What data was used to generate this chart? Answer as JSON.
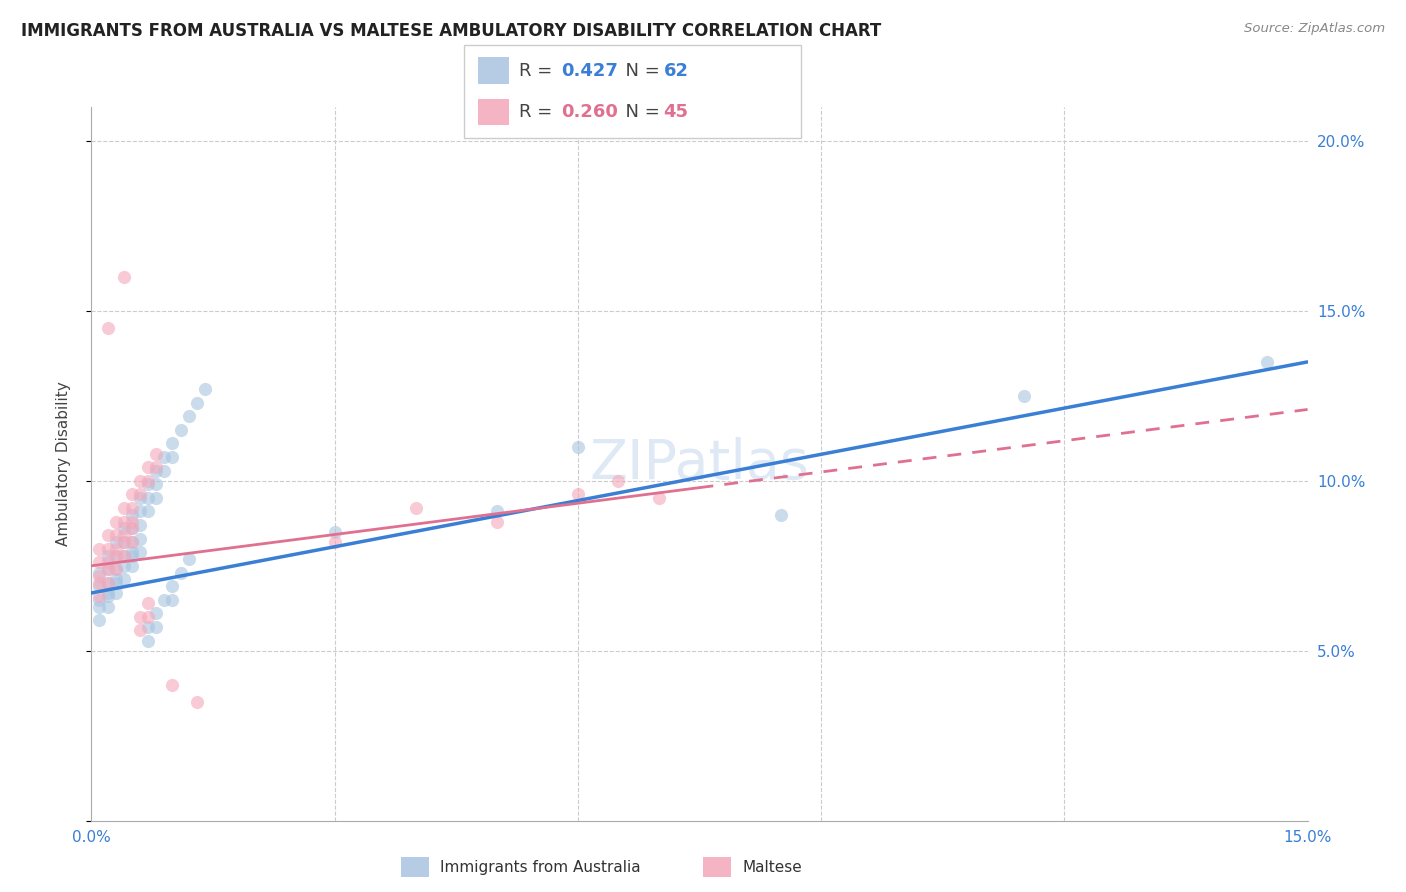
{
  "title": "IMMIGRANTS FROM AUSTRALIA VS MALTESE AMBULATORY DISABILITY CORRELATION CHART",
  "source": "Source: ZipAtlas.com",
  "ylabel_label": "Ambulatory Disability",
  "x_min": 0.0,
  "x_max": 0.15,
  "y_min": 0.0,
  "y_max": 0.21,
  "blue_color": "#a8c4e0",
  "pink_color": "#f4a7b9",
  "line_blue": "#3a7fd5",
  "line_pink": "#e07090",
  "background_color": "#ffffff",
  "scatter_alpha": 0.6,
  "scatter_size": 90,
  "watermark": "ZIPatlas",
  "blue_r": "0.427",
  "blue_n": "62",
  "pink_r": "0.260",
  "pink_n": "45",
  "blue_x": [
    0.001,
    0.001,
    0.001,
    0.002,
    0.002,
    0.002,
    0.002,
    0.003,
    0.003,
    0.003,
    0.003,
    0.004,
    0.004,
    0.004,
    0.005,
    0.005,
    0.005,
    0.005,
    0.006,
    0.006,
    0.006,
    0.007,
    0.007,
    0.007,
    0.008,
    0.008,
    0.008,
    0.009,
    0.009,
    0.01,
    0.01,
    0.011,
    0.012,
    0.013,
    0.014,
    0.001,
    0.001,
    0.002,
    0.002,
    0.003,
    0.003,
    0.004,
    0.004,
    0.005,
    0.005,
    0.006,
    0.006,
    0.007,
    0.007,
    0.008,
    0.008,
    0.009,
    0.01,
    0.01,
    0.011,
    0.012,
    0.03,
    0.05,
    0.06,
    0.085,
    0.115,
    0.145
  ],
  "blue_y": [
    0.073,
    0.069,
    0.065,
    0.078,
    0.074,
    0.07,
    0.066,
    0.082,
    0.078,
    0.074,
    0.07,
    0.086,
    0.082,
    0.078,
    0.09,
    0.086,
    0.082,
    0.078,
    0.095,
    0.091,
    0.087,
    0.099,
    0.095,
    0.091,
    0.103,
    0.099,
    0.095,
    0.107,
    0.103,
    0.111,
    0.107,
    0.115,
    0.119,
    0.123,
    0.127,
    0.063,
    0.059,
    0.067,
    0.063,
    0.071,
    0.067,
    0.075,
    0.071,
    0.079,
    0.075,
    0.083,
    0.079,
    0.057,
    0.053,
    0.061,
    0.057,
    0.065,
    0.069,
    0.065,
    0.073,
    0.077,
    0.085,
    0.091,
    0.11,
    0.09,
    0.125,
    0.135
  ],
  "pink_x": [
    0.001,
    0.001,
    0.001,
    0.002,
    0.002,
    0.002,
    0.003,
    0.003,
    0.003,
    0.004,
    0.004,
    0.004,
    0.005,
    0.005,
    0.005,
    0.006,
    0.006,
    0.007,
    0.007,
    0.008,
    0.008,
    0.001,
    0.001,
    0.002,
    0.002,
    0.003,
    0.003,
    0.004,
    0.004,
    0.005,
    0.005,
    0.006,
    0.006,
    0.007,
    0.007,
    0.03,
    0.04,
    0.05,
    0.06,
    0.065,
    0.07,
    0.002,
    0.004,
    0.01,
    0.013
  ],
  "pink_y": [
    0.08,
    0.076,
    0.072,
    0.084,
    0.08,
    0.076,
    0.088,
    0.084,
    0.08,
    0.092,
    0.088,
    0.084,
    0.096,
    0.092,
    0.088,
    0.1,
    0.096,
    0.104,
    0.1,
    0.108,
    0.104,
    0.07,
    0.066,
    0.074,
    0.07,
    0.078,
    0.074,
    0.082,
    0.078,
    0.086,
    0.082,
    0.06,
    0.056,
    0.064,
    0.06,
    0.082,
    0.092,
    0.088,
    0.096,
    0.1,
    0.095,
    0.145,
    0.16,
    0.04,
    0.035
  ]
}
